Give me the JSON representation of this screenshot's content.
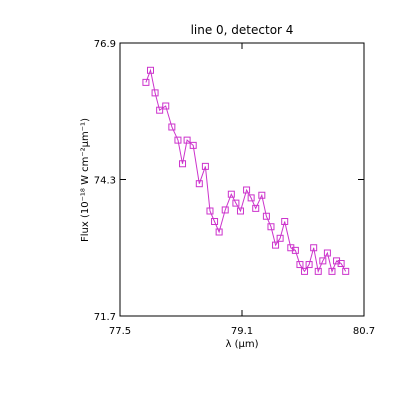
{
  "chart_data": {
    "type": "line",
    "title": "line 0, detector 4",
    "xlabel": "λ (μm)",
    "ylabel": "Flux (10⁻¹⁸ W cm⁻²μm⁻¹)",
    "xlim": [
      77.5,
      80.7
    ],
    "ylim": [
      71.7,
      76.9
    ],
    "xticks": [
      "77.5",
      "79.1",
      "80.7"
    ],
    "yticks": [
      "71.7",
      "74.3",
      "76.9"
    ],
    "grid": false,
    "colors": {
      "series": "#cc33cc",
      "axes": "#000000"
    },
    "series": [
      {
        "marker": "open-square",
        "x": [
          77.84,
          77.9,
          77.96,
          78.02,
          78.1,
          78.18,
          78.26,
          78.32,
          78.38,
          78.46,
          78.54,
          78.62,
          78.68,
          78.74,
          78.8,
          78.88,
          78.96,
          79.02,
          79.08,
          79.16,
          79.22,
          79.28,
          79.36,
          79.42,
          79.48,
          79.54,
          79.6,
          79.66,
          79.74,
          79.8,
          79.86,
          79.92,
          79.98,
          80.04,
          80.1,
          80.16,
          80.22,
          80.28,
          80.34,
          80.4,
          80.46
        ],
        "y": [
          76.15,
          76.38,
          75.95,
          75.62,
          75.7,
          75.3,
          75.05,
          74.6,
          75.05,
          74.95,
          74.22,
          74.55,
          73.7,
          73.5,
          73.3,
          73.72,
          74.02,
          73.85,
          73.7,
          74.1,
          73.95,
          73.75,
          74.0,
          73.6,
          73.4,
          73.05,
          73.18,
          73.5,
          73.0,
          72.95,
          72.68,
          72.55,
          72.68,
          73.0,
          72.55,
          72.75,
          72.9,
          72.55,
          72.75,
          72.7,
          72.55
        ]
      }
    ]
  }
}
